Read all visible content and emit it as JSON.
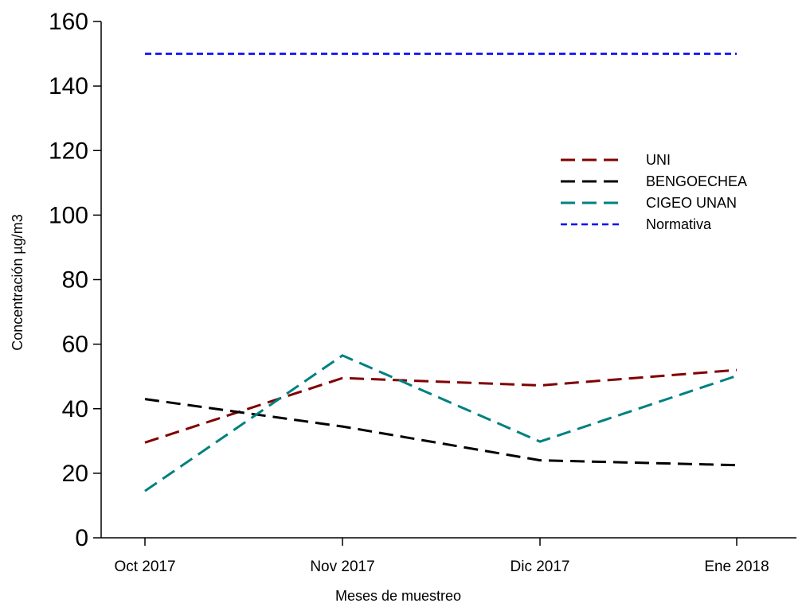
{
  "chart_data": {
    "type": "line",
    "title": "",
    "xlabel": "Meses de muestreo",
    "ylabel": "Concentración µg/m3",
    "categories": [
      "Oct 2017",
      "Nov 2017",
      "Dic 2017",
      "Ene 2018"
    ],
    "ylim": [
      0,
      160
    ],
    "yticks": [
      0,
      20,
      40,
      60,
      80,
      100,
      120,
      140,
      160
    ],
    "grid": false,
    "legend_position": "right",
    "series": [
      {
        "name": "UNI",
        "values": [
          29.5,
          49.5,
          47.2,
          52
        ],
        "color": "#800000",
        "dash": "long"
      },
      {
        "name": "BENGOECHEA",
        "values": [
          43,
          34.5,
          24,
          22.5
        ],
        "color": "#000000",
        "dash": "long"
      },
      {
        "name": " CIGEO UNAN",
        "values": [
          14.5,
          56.5,
          29.8,
          50.2
        ],
        "color": "#008080",
        "dash": "long"
      },
      {
        "name": "Normativa",
        "values": [
          150,
          150,
          150,
          150
        ],
        "color": "#0000ff",
        "dash": "short"
      }
    ]
  }
}
